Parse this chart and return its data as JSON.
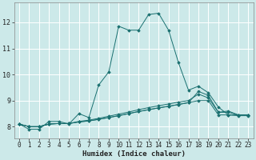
{
  "xlabel": "Humidex (Indice chaleur)",
  "background_color": "#cce9e9",
  "line_color": "#1a7070",
  "grid_color": "#ffffff",
  "xlim": [
    -0.5,
    23.5
  ],
  "ylim": [
    7.55,
    12.75
  ],
  "yticks": [
    8,
    9,
    10,
    11,
    12
  ],
  "xticks": [
    0,
    1,
    2,
    3,
    4,
    5,
    6,
    7,
    8,
    9,
    10,
    11,
    12,
    13,
    14,
    15,
    16,
    17,
    18,
    19,
    20,
    21,
    22,
    23
  ],
  "s1": [
    8.1,
    7.9,
    7.9,
    8.2,
    8.2,
    8.1,
    8.5,
    8.35,
    9.6,
    10.1,
    11.85,
    11.7,
    11.7,
    12.3,
    12.35,
    11.7,
    10.45,
    9.4,
    9.55,
    9.3,
    8.75,
    8.45,
    8.45,
    8.45
  ],
  "s2": [
    8.1,
    8.0,
    8.0,
    8.1,
    8.12,
    8.12,
    8.18,
    8.22,
    8.28,
    8.35,
    8.42,
    8.5,
    8.58,
    8.65,
    8.72,
    8.78,
    8.85,
    8.92,
    9.35,
    9.2,
    8.55,
    8.6,
    8.45,
    8.45
  ],
  "s3": [
    8.1,
    8.0,
    8.0,
    8.1,
    8.12,
    8.12,
    8.2,
    8.25,
    8.32,
    8.4,
    8.48,
    8.56,
    8.65,
    8.73,
    8.8,
    8.87,
    8.94,
    9.0,
    9.25,
    9.1,
    8.55,
    8.55,
    8.45,
    8.45
  ],
  "s4": [
    8.1,
    8.0,
    8.0,
    8.1,
    8.12,
    8.12,
    8.18,
    8.22,
    8.28,
    8.35,
    8.42,
    8.5,
    8.58,
    8.65,
    8.72,
    8.78,
    8.85,
    8.92,
    9.0,
    9.0,
    8.45,
    8.45,
    8.42,
    8.42
  ]
}
